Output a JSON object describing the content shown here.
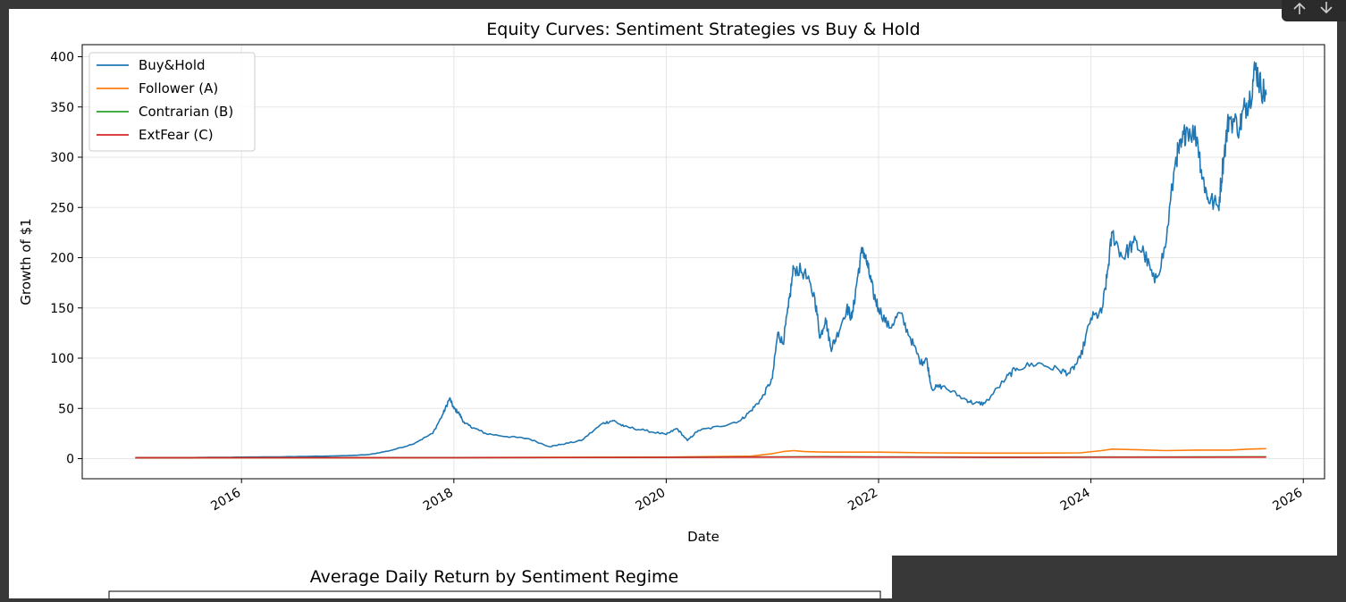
{
  "chart_data": [
    {
      "type": "line",
      "title": "Equity Curves: Sentiment Strategies vs Buy & Hold",
      "xlabel": "Date",
      "ylabel": "Growth of $1",
      "xlim": [
        2014.5,
        2026.2
      ],
      "ylim": [
        -20,
        412
      ],
      "xticks": [
        2016,
        2018,
        2020,
        2022,
        2024,
        2026
      ],
      "xtick_labels": [
        "2016",
        "2018",
        "2020",
        "2022",
        "2024",
        "2026"
      ],
      "yticks": [
        0,
        50,
        100,
        150,
        200,
        250,
        300,
        350,
        400
      ],
      "ytick_labels": [
        "0",
        "50",
        "100",
        "150",
        "200",
        "250",
        "300",
        "350",
        "400"
      ],
      "grid": true,
      "legend_position": "top-left",
      "series": [
        {
          "name": "Buy&Hold",
          "color": "#1f77b4",
          "x": [
            2015.0,
            2015.5,
            2016.0,
            2016.5,
            2017.0,
            2017.2,
            2017.4,
            2017.6,
            2017.8,
            2017.9,
            2017.96,
            2018.0,
            2018.05,
            2018.1,
            2018.2,
            2018.3,
            2018.5,
            2018.7,
            2018.9,
            2019.0,
            2019.2,
            2019.4,
            2019.5,
            2019.6,
            2019.8,
            2020.0,
            2020.1,
            2020.2,
            2020.3,
            2020.5,
            2020.7,
            2020.8,
            2020.9,
            2021.0,
            2021.05,
            2021.1,
            2021.15,
            2021.2,
            2021.3,
            2021.4,
            2021.45,
            2021.5,
            2021.55,
            2021.6,
            2021.7,
            2021.75,
            2021.8,
            2021.85,
            2021.9,
            2021.95,
            2022.0,
            2022.1,
            2022.2,
            2022.3,
            2022.4,
            2022.45,
            2022.5,
            2022.6,
            2022.8,
            2022.9,
            2023.0,
            2023.2,
            2023.3,
            2023.5,
            2023.7,
            2023.8,
            2023.9,
            2024.0,
            2024.1,
            2024.15,
            2024.2,
            2024.3,
            2024.4,
            2024.5,
            2024.6,
            2024.7,
            2024.8,
            2024.85,
            2024.9,
            2025.0,
            2025.05,
            2025.1,
            2025.2,
            2025.25,
            2025.3,
            2025.4,
            2025.45,
            2025.5,
            2025.55,
            2025.6,
            2025.65
          ],
          "values": [
            1,
            1,
            1.5,
            2,
            3,
            4,
            8,
            14,
            25,
            45,
            60,
            50,
            45,
            35,
            30,
            25,
            22,
            20,
            12,
            14,
            18,
            35,
            38,
            32,
            28,
            24,
            30,
            18,
            28,
            32,
            38,
            48,
            60,
            80,
            125,
            115,
            150,
            190,
            185,
            160,
            120,
            140,
            110,
            120,
            150,
            140,
            180,
            210,
            190,
            165,
            150,
            130,
            145,
            120,
            95,
            100,
            70,
            72,
            60,
            55,
            55,
            80,
            90,
            95,
            88,
            85,
            100,
            140,
            145,
            180,
            225,
            200,
            215,
            205,
            175,
            210,
            300,
            310,
            330,
            320,
            280,
            260,
            250,
            300,
            340,
            330,
            350,
            360,
            390,
            370,
            362
          ]
        },
        {
          "name": "Follower (A)",
          "color": "#ff7f0e",
          "x": [
            2015.0,
            2017.0,
            2019.0,
            2020.0,
            2020.8,
            2021.0,
            2021.1,
            2021.2,
            2021.3,
            2021.5,
            2022.0,
            2022.5,
            2023.0,
            2023.5,
            2023.9,
            2024.1,
            2024.2,
            2024.4,
            2024.7,
            2025.0,
            2025.3,
            2025.5,
            2025.65
          ],
          "values": [
            1,
            1,
            1.2,
            1.5,
            2.5,
            5,
            7,
            8,
            7,
            6.5,
            6.5,
            5.8,
            5.5,
            5.5,
            5.8,
            8,
            9.5,
            9,
            8,
            8.5,
            8.5,
            9.5,
            10
          ]
        },
        {
          "name": "Contrarian (B)",
          "color": "#2ca02c",
          "x": [
            2015.0,
            2018.0,
            2020.0,
            2021.0,
            2021.5,
            2022.0,
            2023.0,
            2024.0,
            2025.0,
            2025.65
          ],
          "values": [
            1,
            1.1,
            1.3,
            1.8,
            2.0,
            1.8,
            1.5,
            1.6,
            1.8,
            1.9
          ]
        },
        {
          "name": "ExtFear (C)",
          "color": "#d62728",
          "x": [
            2015.0,
            2018.0,
            2020.0,
            2021.0,
            2021.5,
            2022.0,
            2023.0,
            2024.0,
            2025.0,
            2025.65
          ],
          "values": [
            1,
            1.0,
            1.2,
            1.5,
            1.6,
            1.5,
            1.2,
            1.3,
            1.4,
            1.5
          ]
        }
      ]
    },
    {
      "type": "bar",
      "title": "Average Daily Return by Sentiment Regime",
      "categories": [],
      "values": []
    }
  ],
  "toolbar": {
    "up_icon": "arrow-up-icon",
    "down_icon": "arrow-down-icon"
  }
}
